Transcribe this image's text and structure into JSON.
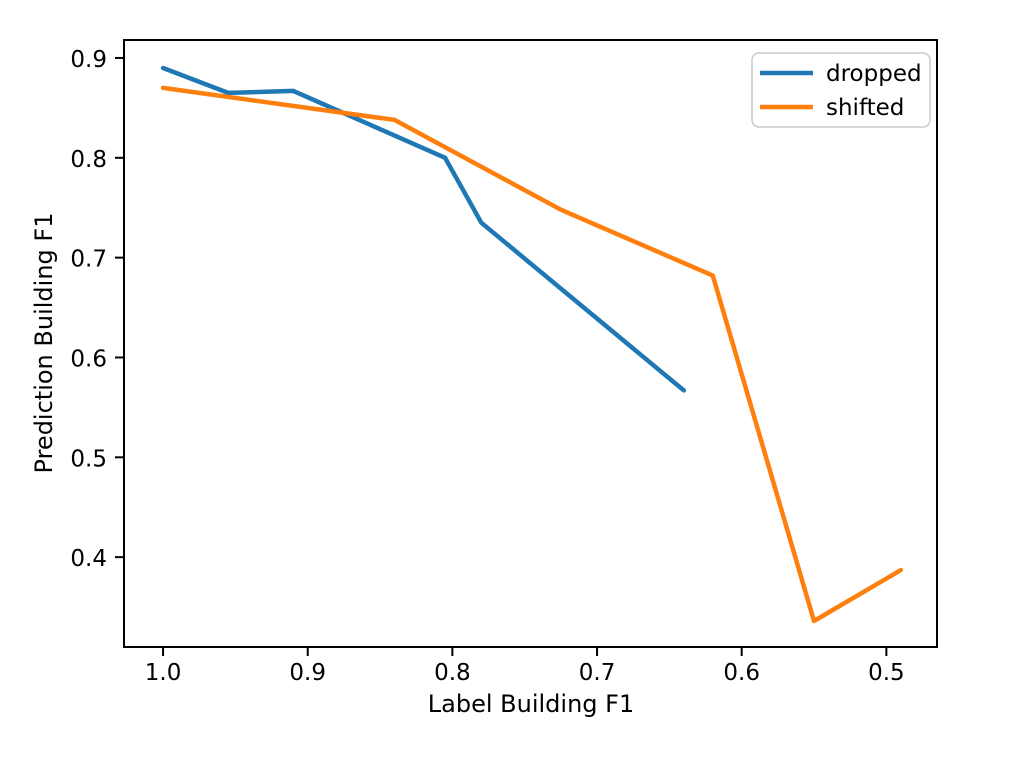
{
  "figure": {
    "background": "#ffffff",
    "spine_color": "#000000",
    "text_color": "#000000"
  },
  "chart_data": {
    "type": "line",
    "title": "",
    "xlabel": "Label Building F1",
    "ylabel": "Prediction Building F1",
    "x_axis_reversed": true,
    "grid": false,
    "xlim": [
      1.027,
      0.465
    ],
    "ylim": [
      0.31,
      0.918
    ],
    "x_ticks": [
      1.0,
      0.9,
      0.8,
      0.7,
      0.6,
      0.5
    ],
    "x_tick_labels": [
      "1.0",
      "0.9",
      "0.8",
      "0.7",
      "0.6",
      "0.5"
    ],
    "y_ticks": [
      0.9,
      0.8,
      0.7,
      0.6,
      0.5,
      0.4
    ],
    "y_tick_labels": [
      "0.9",
      "0.8",
      "0.7",
      "0.6",
      "0.5",
      "0.4"
    ],
    "legend": {
      "position": "upper right",
      "frame_color": "#cccccc",
      "entries": [
        "dropped",
        "shifted"
      ]
    },
    "series": [
      {
        "name": "dropped",
        "color": "#1f77b4",
        "x": [
          1.0,
          0.955,
          0.91,
          0.805,
          0.78,
          0.64
        ],
        "y": [
          0.89,
          0.865,
          0.867,
          0.8,
          0.735,
          0.567
        ]
      },
      {
        "name": "shifted",
        "color": "#ff7f0e",
        "x": [
          1.0,
          0.84,
          0.725,
          0.62,
          0.55,
          0.49
        ],
        "y": [
          0.87,
          0.838,
          0.748,
          0.682,
          0.336,
          0.387
        ]
      }
    ]
  }
}
